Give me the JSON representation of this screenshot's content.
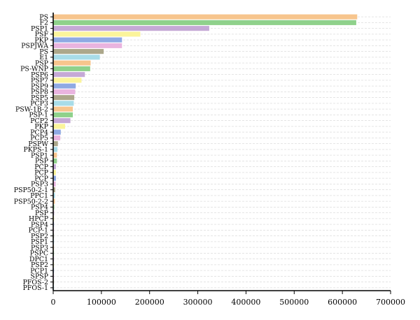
{
  "chart_data": {
    "type": "bar",
    "orientation": "horizontal",
    "title": "",
    "xlabel": "",
    "ylabel": "",
    "xlim": [
      0,
      700000
    ],
    "x_ticks": [
      "0",
      "100000",
      "200000",
      "300000",
      "400000",
      "500000",
      "600000",
      "700000"
    ],
    "grid": "dashed-horizontal",
    "legend": "none",
    "categories": [
      "PS",
      "F2",
      "PSP1",
      "PSF",
      "PKP",
      "PSPJWA",
      "PS",
      "E1",
      "PSP",
      "PS-WNP",
      "PSP6",
      "PSP7",
      "PSP9",
      "PSP8",
      "PSP5",
      "PCP3",
      "PSW-1B-2",
      "PSP-1",
      "PCP2",
      "PKP",
      "PCP4",
      "PCP5",
      "PSPW",
      "PKPS-1",
      "PSP1",
      "PSP",
      "PCP",
      "PCP",
      "PCP",
      "PSP3",
      "PSP50-2-1",
      "PPC1",
      "PSP50-2-2",
      "PSP4",
      "PSP",
      "HPCP",
      "PSP4",
      "PCP-1",
      "PSP2",
      "PSP1",
      "PSP3",
      "PSPC",
      "DPC1",
      "PSP2",
      "PCP1",
      "SPSP",
      "PFOS-2",
      "PFOS-1"
    ],
    "values": [
      630000,
      628000,
      323000,
      180000,
      142000,
      142000,
      104000,
      96000,
      77000,
      76000,
      65000,
      58000,
      46000,
      45000,
      43000,
      42000,
      40000,
      40000,
      35000,
      24000,
      15000,
      14000,
      9000,
      8000,
      7000,
      7000,
      5000,
      5000,
      5000,
      4500,
      3500,
      3000,
      2800,
      1500,
      1200,
      1000,
      900,
      800,
      700,
      600,
      500,
      450,
      400,
      350,
      300,
      250,
      200,
      150
    ],
    "colors": [
      "#f7c58d",
      "#8fd18b",
      "#c5a9d6",
      "#fbf49b",
      "#8fa9e3",
      "#e9b4df",
      "#aca78b",
      "#a8dce8"
    ]
  }
}
